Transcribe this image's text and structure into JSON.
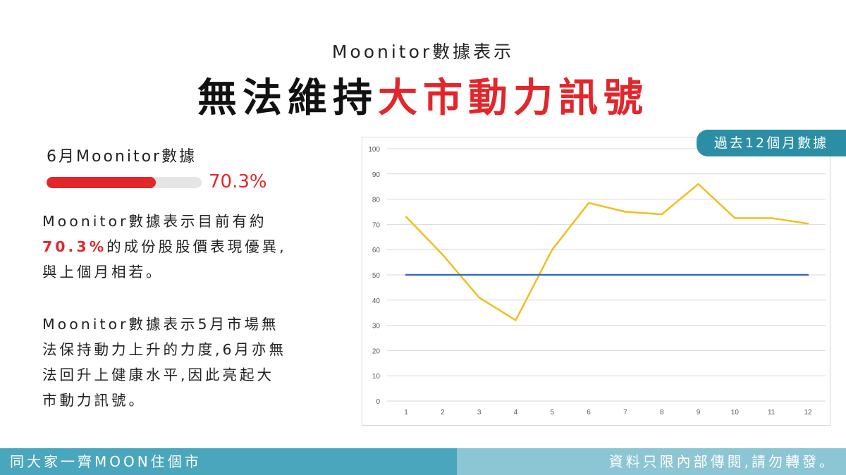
{
  "header": {
    "subtitle": "Moonitor數據表示",
    "title_black": "無法維持",
    "title_red": "大市動力訊號"
  },
  "metric": {
    "label": "6月Moonitor數據",
    "value_text": "70.3%",
    "progress_percent": 70.3
  },
  "paragraphs": {
    "p1_line1": "Moonitor數據表示目前有約",
    "p1_highlight": "70.3%",
    "p1_rest": "的成份股股價表現優異,",
    "p1_line3": "與上個月相若。",
    "p2_lines": [
      "Moonitor數據表示5月市場無",
      "法保持動力上升的力度,6月亦無",
      "法回升上健康水平,因此亮起大",
      "市動力訊號。"
    ]
  },
  "badge": {
    "label": "過去12個月數據"
  },
  "footer": {
    "left": "同大家一齊MOON住個市",
    "right": "資料只限內部傳閱,請勿轉發。"
  },
  "colors": {
    "accent_red": "#e3262b",
    "teal": "#2b8ea4",
    "line_yellow": "#f2be1d",
    "line_blue": "#3a6db5"
  },
  "chart_data": {
    "type": "line",
    "x": [
      1,
      2,
      3,
      4,
      5,
      6,
      7,
      8,
      9,
      10,
      11,
      12
    ],
    "series": [
      {
        "values": [
          73,
          58,
          41,
          32,
          60,
          78.5,
          75,
          74,
          86,
          72.5,
          72.5,
          70.3
        ],
        "color": "#f2be1d"
      },
      {
        "values": [
          50,
          50,
          50,
          50,
          50,
          50,
          50,
          50,
          50,
          50,
          50,
          50
        ],
        "color": "#3a6db5"
      }
    ],
    "yticks": [
      0,
      10,
      20,
      30,
      40,
      50,
      60,
      70,
      80,
      90,
      100
    ],
    "ylim": [
      0,
      100
    ],
    "xlim": [
      1,
      12
    ],
    "grid": true,
    "title": "",
    "xlabel": "",
    "ylabel": ""
  }
}
